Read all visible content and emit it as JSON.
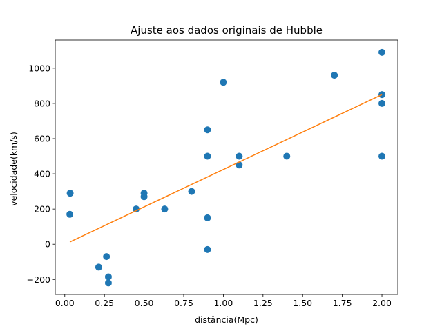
{
  "chart_data": {
    "type": "scatter",
    "title": "Ajuste aos dados originais de Hubble",
    "xlabel": "distância(Mpc)",
    "ylabel": "velocidade(km/s)",
    "xlim": [
      -0.06,
      2.1
    ],
    "ylim": [
      -285,
      1160
    ],
    "xticks": [
      0.0,
      0.25,
      0.5,
      0.75,
      1.0,
      1.25,
      1.5,
      1.75,
      2.0
    ],
    "xtick_labels": [
      "0.00",
      "0.25",
      "0.50",
      "0.75",
      "1.00",
      "1.25",
      "1.50",
      "1.75",
      "2.00"
    ],
    "yticks": [
      -200,
      0,
      200,
      400,
      600,
      800,
      1000
    ],
    "ytick_labels": [
      "−200",
      "0",
      "200",
      "400",
      "600",
      "800",
      "1000"
    ],
    "grid": false,
    "series": [
      {
        "type": "scatter",
        "color": "#1f77b4",
        "points": [
          {
            "x": 0.032,
            "y": 170
          },
          {
            "x": 0.034,
            "y": 290
          },
          {
            "x": 0.214,
            "y": -130
          },
          {
            "x": 0.263,
            "y": -70
          },
          {
            "x": 0.275,
            "y": -185
          },
          {
            "x": 0.275,
            "y": -220
          },
          {
            "x": 0.45,
            "y": 200
          },
          {
            "x": 0.5,
            "y": 290
          },
          {
            "x": 0.5,
            "y": 270
          },
          {
            "x": 0.63,
            "y": 200
          },
          {
            "x": 0.8,
            "y": 300
          },
          {
            "x": 0.9,
            "y": -30
          },
          {
            "x": 0.9,
            "y": 650
          },
          {
            "x": 0.9,
            "y": 150
          },
          {
            "x": 0.9,
            "y": 500
          },
          {
            "x": 1.0,
            "y": 920
          },
          {
            "x": 1.1,
            "y": 450
          },
          {
            "x": 1.1,
            "y": 500
          },
          {
            "x": 1.4,
            "y": 500
          },
          {
            "x": 1.7,
            "y": 960
          },
          {
            "x": 2.0,
            "y": 500
          },
          {
            "x": 2.0,
            "y": 850
          },
          {
            "x": 2.0,
            "y": 800
          },
          {
            "x": 2.0,
            "y": 1090
          }
        ]
      },
      {
        "type": "line",
        "color": "#ff7f0e",
        "x": [
          0.032,
          2.0
        ],
        "y": [
          13,
          850
        ]
      }
    ]
  }
}
